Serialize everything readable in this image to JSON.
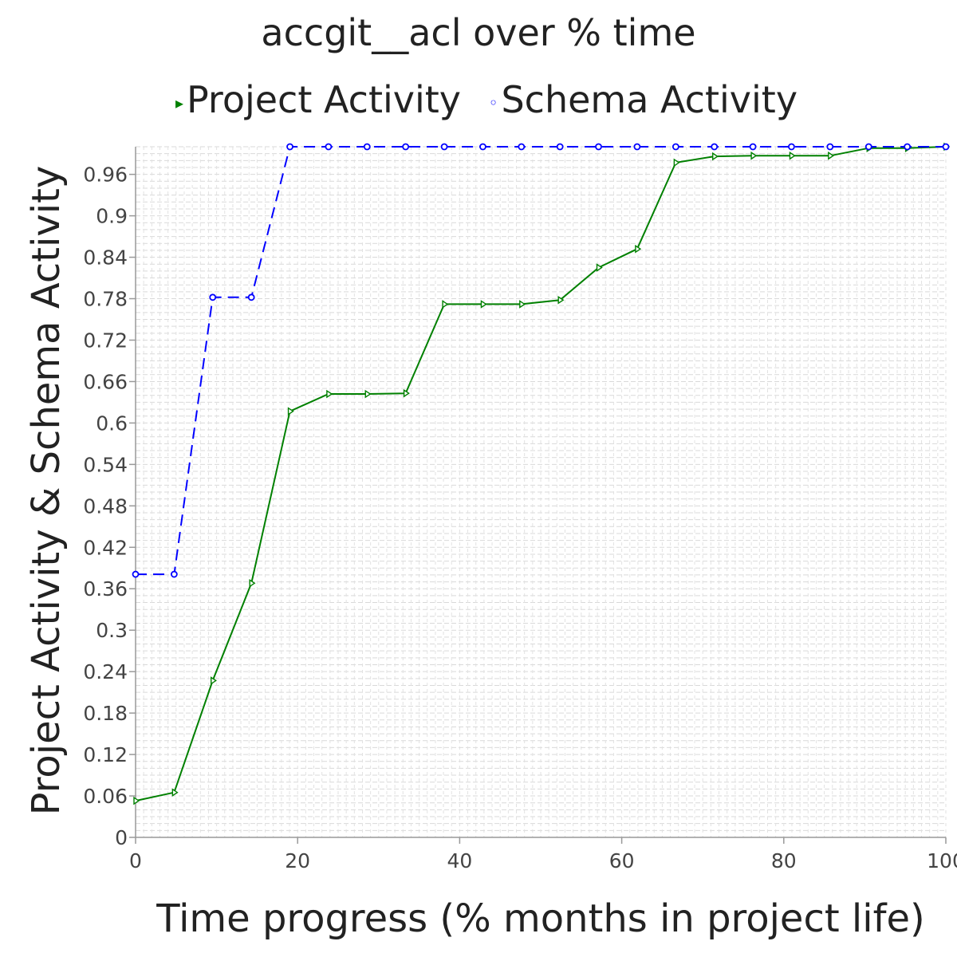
{
  "chart_data": {
    "type": "line",
    "title": "accgit__acl over % time",
    "xlabel": "Time progress (% months in project life)",
    "ylabel": "Project Activity & Schema Activity",
    "xlim": [
      0,
      100
    ],
    "ylim": [
      0,
      1.0
    ],
    "x_ticks": [
      "0",
      "20",
      "40",
      "60",
      "80",
      "100"
    ],
    "y_ticks": [
      "0",
      "0.06",
      "0.12",
      "0.18",
      "0.24",
      "0.3",
      "0.36",
      "0.42",
      "0.48",
      "0.54",
      "0.6",
      "0.66",
      "0.72",
      "0.78",
      "0.84",
      "0.9",
      "0.96"
    ],
    "legend_position": "top",
    "grid": true,
    "series": [
      {
        "name": "Project Activity",
        "color": "#008000",
        "marker": "triangle-right",
        "line_style": "solid",
        "x": [
          0,
          4.76,
          9.52,
          14.29,
          19.05,
          23.81,
          28.57,
          33.33,
          38.1,
          42.86,
          47.62,
          52.38,
          57.14,
          61.9,
          66.67,
          71.43,
          76.19,
          80.95,
          85.71,
          90.48,
          95.24,
          100
        ],
        "y": [
          0.053,
          0.065,
          0.227,
          0.368,
          0.617,
          0.642,
          0.642,
          0.643,
          0.772,
          0.772,
          0.772,
          0.778,
          0.825,
          0.852,
          0.977,
          0.986,
          0.987,
          0.987,
          0.987,
          0.998,
          0.998,
          1.0
        ]
      },
      {
        "name": "Schema Activity",
        "color": "#0000ff",
        "marker": "circle",
        "line_style": "dashed",
        "x": [
          0,
          4.76,
          9.52,
          14.29,
          19.05,
          23.81,
          28.57,
          33.33,
          38.1,
          42.86,
          47.62,
          52.38,
          57.14,
          61.9,
          66.67,
          71.43,
          76.19,
          80.95,
          85.71,
          90.48,
          95.24,
          100
        ],
        "y": [
          0.381,
          0.381,
          0.782,
          0.782,
          1.0,
          1.0,
          1.0,
          1.0,
          1.0,
          1.0,
          1.0,
          1.0,
          1.0,
          1.0,
          1.0,
          1.0,
          1.0,
          1.0,
          1.0,
          1.0,
          1.0,
          1.0
        ]
      }
    ]
  }
}
